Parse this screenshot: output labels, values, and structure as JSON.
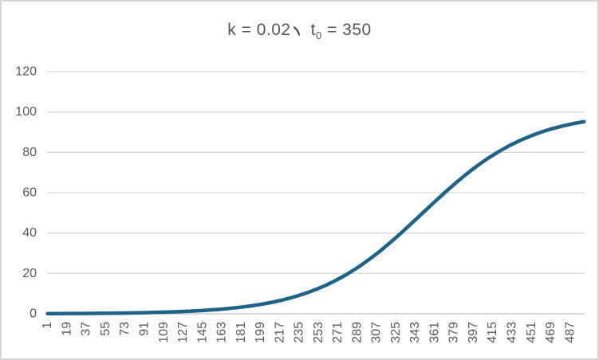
{
  "chart": {
    "title": {
      "full_text": "k = 0.02、 t₀ = 350",
      "part1": "k = 0.02",
      "comma": "、",
      "part2": "t",
      "subscript": "0",
      "part3": " = 350"
    },
    "colors": {
      "series": "#1f6287",
      "gridline": "#d9d9d9",
      "axis_line": "#bfbfbf",
      "tick_text": "#595959",
      "title_text": "#575757",
      "border": "#d6d6d6",
      "background": "#ffffff"
    }
  },
  "chart_data": {
    "type": "line",
    "title": "k = 0.02、 t₀ = 350",
    "k": 0.02,
    "t0": 350,
    "xlabel": "",
    "ylabel": "",
    "ylim": [
      0,
      120
    ],
    "y_ticks": [
      0,
      20,
      40,
      60,
      80,
      100,
      120
    ],
    "x_range": [
      1,
      500
    ],
    "x_tick_labels": [
      1,
      19,
      37,
      55,
      73,
      91,
      109,
      127,
      145,
      163,
      181,
      199,
      217,
      235,
      253,
      271,
      289,
      307,
      325,
      343,
      361,
      379,
      397,
      415,
      433,
      451,
      469,
      487
    ],
    "grid": "horizontal",
    "legend": "none",
    "series": [
      {
        "color": "#1f6287",
        "x": [
          1,
          10,
          20,
          30,
          40,
          50,
          60,
          70,
          80,
          90,
          100,
          110,
          120,
          130,
          140,
          150,
          160,
          170,
          180,
          190,
          200,
          210,
          220,
          230,
          240,
          250,
          260,
          270,
          280,
          290,
          300,
          310,
          320,
          330,
          340,
          350,
          360,
          370,
          380,
          390,
          400,
          410,
          420,
          430,
          440,
          450,
          460,
          470,
          480,
          490,
          500
        ],
        "y": [
          0.09,
          0.11,
          0.14,
          0.17,
          0.2,
          0.25,
          0.3,
          0.37,
          0.45,
          0.55,
          0.67,
          0.82,
          1.0,
          1.21,
          1.48,
          1.8,
          2.19,
          2.66,
          3.23,
          3.92,
          4.74,
          5.73,
          6.91,
          8.32,
          9.97,
          11.92,
          14.19,
          16.8,
          19.78,
          23.15,
          26.89,
          31.0,
          35.43,
          40.13,
          45.02,
          50.0,
          54.98,
          59.87,
          64.57,
          69.0,
          73.11,
          76.85,
          80.22,
          83.2,
          85.82,
          88.08,
          90.02,
          91.68,
          93.09,
          94.27,
          95.26
        ]
      }
    ]
  }
}
